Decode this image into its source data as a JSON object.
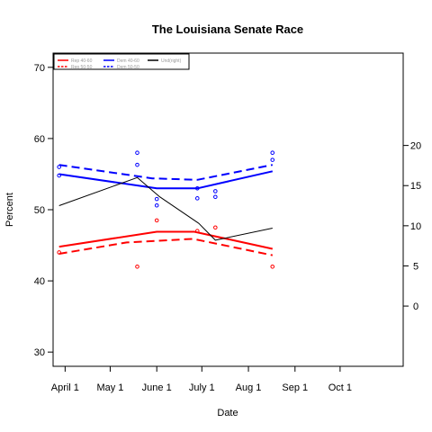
{
  "chart_data": {
    "type": "line",
    "title": "The Louisiana Senate Race",
    "xlabel": "Date",
    "ylabel": "Percent",
    "x_ticks": [
      {
        "label": "April 1",
        "date": "2008-04-01"
      },
      {
        "label": "May 1",
        "date": "2008-05-01"
      },
      {
        "label": "June 1",
        "date": "2008-06-01"
      },
      {
        "label": "July 1",
        "date": "2008-07-01"
      },
      {
        "label": "Aug 1",
        "date": "2008-08-01"
      },
      {
        "label": "Sep 1",
        "date": "2008-09-01"
      },
      {
        "label": "Oct 1",
        "date": "2008-10-01"
      }
    ],
    "xlim": [
      "2008-03-24",
      "2008-11-12"
    ],
    "ylim": [
      28,
      72
    ],
    "y_ticks": [
      30,
      40,
      50,
      60,
      70
    ],
    "ylim_right": [
      -7.5,
      31.5
    ],
    "y_ticks_right": [
      0,
      5,
      10,
      15,
      20
    ],
    "grid": false,
    "legend_position": "top-left",
    "colors": {
      "rep": "#ff0000",
      "dem": "#0000ff",
      "undecided": "#000000"
    },
    "legend": [
      {
        "label": "Rep 40-60",
        "color": "#ff0000",
        "style": "solid"
      },
      {
        "label": "Rep 50-50",
        "color": "#ff0000",
        "style": "dashed"
      },
      {
        "label": "Dem 40-60",
        "color": "#0000ff",
        "style": "solid"
      },
      {
        "label": "Dem 50-50",
        "color": "#0000ff",
        "style": "dashed"
      },
      {
        "label": "Und(right)",
        "color": "#000000",
        "style": "solid"
      }
    ],
    "series": [
      {
        "name": "Rep 40-60",
        "axis": "left",
        "color": "#ff0000",
        "style": "solid",
        "width": 2,
        "points": [
          [
            "2008-03-28",
            44.8
          ],
          [
            "2008-06-01",
            46.9
          ],
          [
            "2008-06-26",
            46.9
          ],
          [
            "2008-08-17",
            44.5
          ]
        ]
      },
      {
        "name": "Rep 50-50",
        "axis": "left",
        "color": "#ff0000",
        "style": "dashed",
        "width": 2,
        "points": [
          [
            "2008-03-28",
            43.8
          ],
          [
            "2008-05-12",
            45.4
          ],
          [
            "2008-06-25",
            45.9
          ],
          [
            "2008-08-17",
            43.6
          ]
        ]
      },
      {
        "name": "Dem 40-60",
        "axis": "left",
        "color": "#0000ff",
        "style": "solid",
        "width": 2,
        "points": [
          [
            "2008-03-28",
            55.0
          ],
          [
            "2008-06-01",
            53.0
          ],
          [
            "2008-06-28",
            53.0
          ],
          [
            "2008-08-17",
            55.4
          ]
        ]
      },
      {
        "name": "Dem 50-50",
        "axis": "left",
        "color": "#0000ff",
        "style": "dashed",
        "width": 2,
        "points": [
          [
            "2008-03-28",
            56.3
          ],
          [
            "2008-05-29",
            54.4
          ],
          [
            "2008-06-28",
            54.2
          ],
          [
            "2008-08-17",
            56.3
          ]
        ]
      },
      {
        "name": "Und(right)",
        "axis": "right",
        "color": "#000000",
        "style": "solid",
        "width": 1,
        "points": [
          [
            "2008-03-28",
            12.5
          ],
          [
            "2008-05-19",
            16.0
          ],
          [
            "2008-06-03",
            13.6
          ],
          [
            "2008-06-29",
            10.3
          ],
          [
            "2008-07-10",
            8.2
          ],
          [
            "2008-08-17",
            9.7
          ]
        ]
      }
    ],
    "scatter": [
      {
        "group": "rep",
        "color": "#ff0000",
        "axis": "left",
        "points": [
          [
            "2008-03-28",
            44.0
          ],
          [
            "2008-05-19",
            42.0
          ],
          [
            "2008-06-01",
            48.5
          ],
          [
            "2008-06-28",
            47.0
          ],
          [
            "2008-07-10",
            47.5
          ],
          [
            "2008-08-17",
            42.0
          ]
        ]
      },
      {
        "group": "dem",
        "color": "#0000ff",
        "axis": "left",
        "points": [
          [
            "2008-03-28",
            56.0
          ],
          [
            "2008-03-28",
            54.8
          ],
          [
            "2008-05-19",
            58.0
          ],
          [
            "2008-05-19",
            56.3
          ],
          [
            "2008-06-01",
            51.5
          ],
          [
            "2008-06-01",
            50.6
          ],
          [
            "2008-06-28",
            53.0
          ],
          [
            "2008-06-28",
            51.6
          ],
          [
            "2008-07-10",
            52.6
          ],
          [
            "2008-07-10",
            51.8
          ],
          [
            "2008-08-17",
            58.0
          ],
          [
            "2008-08-17",
            57.0
          ]
        ]
      }
    ]
  }
}
